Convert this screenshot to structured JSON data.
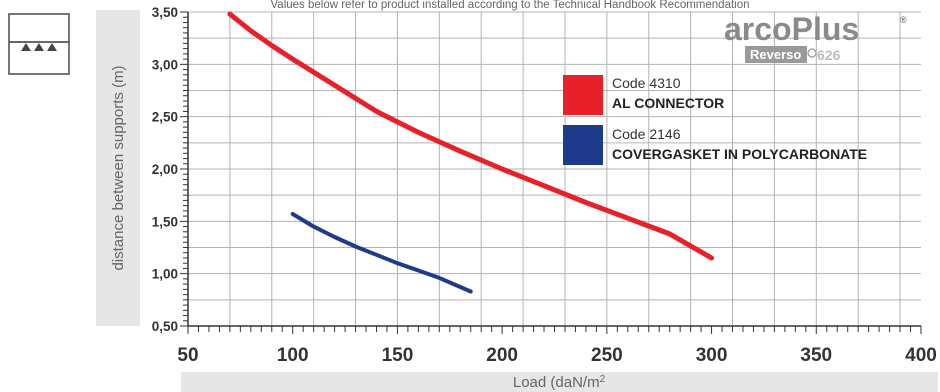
{
  "chart_data": {
    "type": "line",
    "title": "Values below refer to product installed according to the Technical Handbook Recommendation",
    "xlabel": "Load (daN/m²)",
    "ylabel": "distance between supports (m)",
    "xlim": [
      50,
      400
    ],
    "ylim": [
      0.5,
      3.5
    ],
    "x_ticks": [
      "50",
      "100",
      "150",
      "200",
      "250",
      "300",
      "350",
      "400"
    ],
    "y_ticks": [
      "0,50",
      "1,00",
      "1,50",
      "2,00",
      "2,50",
      "3,00",
      "3,50"
    ],
    "grid": true,
    "legend_position": "right",
    "series": [
      {
        "name": "AL CONNECTOR",
        "code": "Code 4310",
        "color": "#e8202a",
        "x": [
          70,
          80,
          90,
          100,
          120,
          140,
          160,
          180,
          200,
          220,
          240,
          260,
          280,
          300
        ],
        "y": [
          3.48,
          3.32,
          3.18,
          3.05,
          2.8,
          2.55,
          2.35,
          2.17,
          2.0,
          1.84,
          1.68,
          1.53,
          1.38,
          1.15
        ]
      },
      {
        "name": "COVERGASKET IN POLYCARBONATE",
        "code": "Code 2146",
        "color": "#1f3a8a",
        "x": [
          100,
          110,
          120,
          130,
          140,
          150,
          160,
          170,
          185
        ],
        "y": [
          1.57,
          1.45,
          1.35,
          1.26,
          1.18,
          1.1,
          1.03,
          0.96,
          0.83
        ]
      }
    ]
  },
  "logo": {
    "main": "arcoPlus",
    "reg": "®",
    "sub": "Reverso",
    "num": "626"
  }
}
